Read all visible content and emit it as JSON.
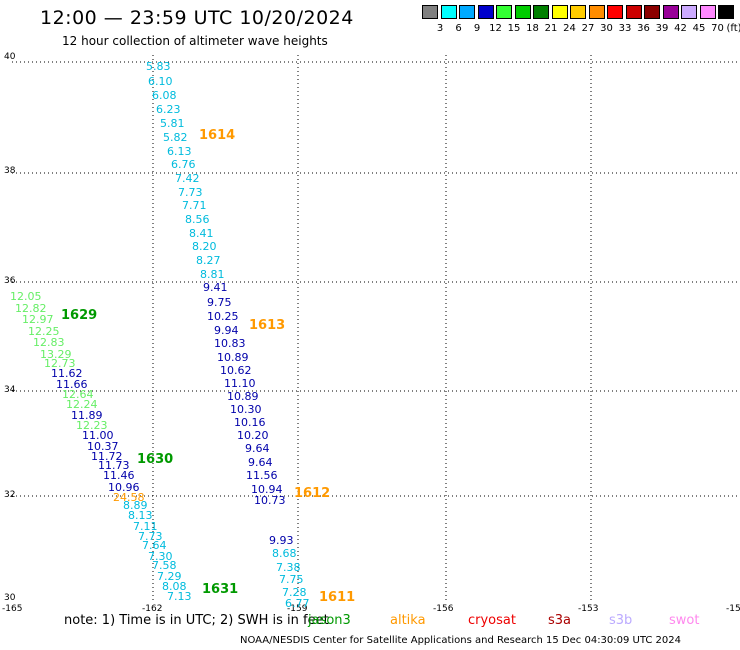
{
  "header": {
    "title": "12:00 — 23:59 UTC 10/20/2024",
    "subtitle": "12 hour collection of altimeter wave heights"
  },
  "legend": {
    "unit": "(ft)",
    "items": [
      {
        "label": "3",
        "color": "#808080"
      },
      {
        "label": "6",
        "color": "#00ffff"
      },
      {
        "label": "9",
        "color": "#00aaff"
      },
      {
        "label": "12",
        "color": "#0000cc"
      },
      {
        "label": "15",
        "color": "#33ff33"
      },
      {
        "label": "18",
        "color": "#00cc00"
      },
      {
        "label": "21",
        "color": "#008000"
      },
      {
        "label": "24",
        "color": "#ffff00"
      },
      {
        "label": "27",
        "color": "#ffcc00"
      },
      {
        "label": "30",
        "color": "#ff8c00"
      },
      {
        "label": "33",
        "color": "#ff0000"
      },
      {
        "label": "36",
        "color": "#cc0000"
      },
      {
        "label": "39",
        "color": "#8b0000"
      },
      {
        "label": "42",
        "color": "#990099"
      },
      {
        "label": "45",
        "color": "#ccaaff"
      },
      {
        "label": "70",
        "color": "#ff88ff"
      },
      {
        "label": "",
        "color": "#000000"
      }
    ]
  },
  "axes": {
    "lat_labels": [
      "40",
      "38",
      "36",
      "34",
      "32",
      "30"
    ],
    "lon_labels": [
      "-165",
      "-162",
      "-159",
      "-156",
      "-153",
      "-15"
    ]
  },
  "colors": {
    "cyan": "#00bbdd",
    "blue": "#0000aa",
    "lgreen": "#66ee66",
    "orange": "#ff9900",
    "green": "#009900"
  },
  "points": [
    {
      "v": "5.83",
      "c": "cyan"
    },
    {
      "v": "6.10",
      "c": "cyan"
    },
    {
      "v": "6.08",
      "c": "cyan"
    },
    {
      "v": "6.23",
      "c": "cyan"
    },
    {
      "v": "5.81",
      "c": "cyan"
    },
    {
      "v": "5.82",
      "c": "cyan"
    },
    {
      "v": "6.13",
      "c": "cyan"
    },
    {
      "v": "6.76",
      "c": "cyan"
    },
    {
      "v": "7.42",
      "c": "cyan"
    },
    {
      "v": "7.73",
      "c": "cyan"
    },
    {
      "v": "7.71",
      "c": "cyan"
    },
    {
      "v": "8.56",
      "c": "cyan"
    },
    {
      "v": "8.41",
      "c": "cyan"
    },
    {
      "v": "8.20",
      "c": "cyan"
    },
    {
      "v": "8.27",
      "c": "cyan"
    },
    {
      "v": "8.81",
      "c": "cyan"
    },
    {
      "v": "9.41",
      "c": "blue"
    },
    {
      "v": "9.75",
      "c": "blue"
    },
    {
      "v": "10.25",
      "c": "blue"
    },
    {
      "v": "9.94",
      "c": "blue"
    },
    {
      "v": "10.83",
      "c": "blue"
    },
    {
      "v": "10.89",
      "c": "blue"
    },
    {
      "v": "10.62",
      "c": "blue"
    },
    {
      "v": "11.10",
      "c": "blue"
    },
    {
      "v": "10.89",
      "c": "blue"
    },
    {
      "v": "10.30",
      "c": "blue"
    },
    {
      "v": "10.16",
      "c": "blue"
    },
    {
      "v": "10.20",
      "c": "blue"
    },
    {
      "v": "9.64",
      "c": "blue"
    },
    {
      "v": "9.64",
      "c": "blue"
    },
    {
      "v": "11.56",
      "c": "blue"
    },
    {
      "v": "10.94",
      "c": "blue"
    },
    {
      "v": "10.73",
      "c": "blue"
    },
    {
      "v": "12.05",
      "c": "lgreen"
    },
    {
      "v": "12.82",
      "c": "lgreen"
    },
    {
      "v": "12.97",
      "c": "lgreen"
    },
    {
      "v": "12.25",
      "c": "lgreen"
    },
    {
      "v": "12.83",
      "c": "lgreen"
    },
    {
      "v": "13.29",
      "c": "lgreen"
    },
    {
      "v": "12.73",
      "c": "lgreen"
    },
    {
      "v": "11.62",
      "c": "blue"
    },
    {
      "v": "11.66",
      "c": "blue"
    },
    {
      "v": "12.64",
      "c": "lgreen"
    },
    {
      "v": "12.24",
      "c": "lgreen"
    },
    {
      "v": "11.89",
      "c": "blue"
    },
    {
      "v": "12.23",
      "c": "lgreen"
    },
    {
      "v": "11.00",
      "c": "blue"
    },
    {
      "v": "10.37",
      "c": "blue"
    },
    {
      "v": "11.72",
      "c": "blue"
    },
    {
      "v": "11.73",
      "c": "blue"
    },
    {
      "v": "11.46",
      "c": "blue"
    },
    {
      "v": "10.96",
      "c": "blue"
    },
    {
      "v": "24.58",
      "c": "orange"
    },
    {
      "v": "8.89",
      "c": "cyan"
    },
    {
      "v": "8.13",
      "c": "cyan"
    },
    {
      "v": "7.11",
      "c": "cyan"
    },
    {
      "v": "7.73",
      "c": "cyan"
    },
    {
      "v": "7.64",
      "c": "cyan"
    },
    {
      "v": "7.30",
      "c": "cyan"
    },
    {
      "v": "7.58",
      "c": "cyan"
    },
    {
      "v": "7.29",
      "c": "cyan"
    },
    {
      "v": "8.08",
      "c": "cyan"
    },
    {
      "v": "7.13",
      "c": "cyan"
    },
    {
      "v": "9.93",
      "c": "blue"
    },
    {
      "v": "8.68",
      "c": "cyan"
    },
    {
      "v": "7.38",
      "c": "cyan"
    },
    {
      "v": "7.75",
      "c": "cyan"
    },
    {
      "v": "7.28",
      "c": "cyan"
    },
    {
      "v": "6.77",
      "c": "cyan"
    }
  ],
  "pass_labels": [
    {
      "v": "1614",
      "c": "orange"
    },
    {
      "v": "1613",
      "c": "orange"
    },
    {
      "v": "1629",
      "c": "green"
    },
    {
      "v": "1630",
      "c": "green"
    },
    {
      "v": "1612",
      "c": "orange"
    },
    {
      "v": "1631",
      "c": "green"
    },
    {
      "v": "1611",
      "c": "orange"
    }
  ],
  "note": "note:  1) Time is in UTC; 2) SWH is in feet",
  "satellites": [
    {
      "name": "jason3",
      "color": "#009900"
    },
    {
      "name": "altika",
      "color": "#ff9900"
    },
    {
      "name": "cryosat",
      "color": "#ee0000"
    },
    {
      "name": "s3a",
      "color": "#aa0000"
    },
    {
      "name": "s3b",
      "color": "#bbaaff"
    },
    {
      "name": "swot",
      "color": "#ff88ee"
    }
  ],
  "footer": "NOAA/NESDIS Center for Satellite Applications and Research    15 Dec 04:30:09 UTC 2024"
}
